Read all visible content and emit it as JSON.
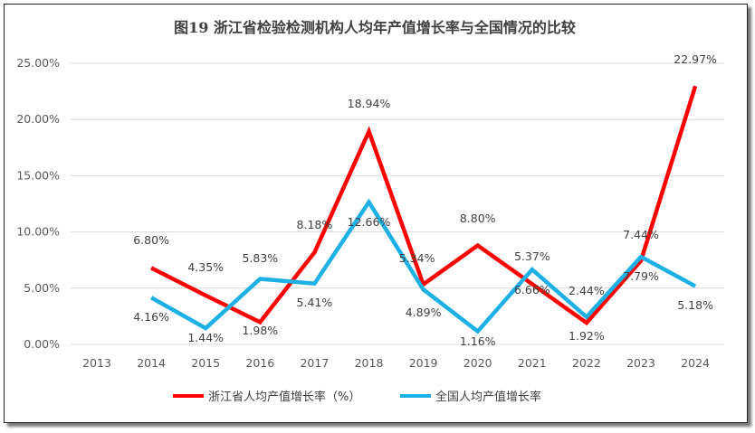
{
  "chart_data": {
    "type": "line",
    "title": "图19  浙江省检验检测机构人均年产值增长率与全国情况的比较",
    "categories": [
      "2013",
      "2014",
      "2015",
      "2016",
      "2017",
      "2018",
      "2019",
      "2020",
      "2021",
      "2022",
      "2023",
      "2024"
    ],
    "ylim": [
      0,
      25
    ],
    "yticks": [
      "0.00%",
      "5.00%",
      "10.00%",
      "15.00%",
      "20.00%",
      "25.00%"
    ],
    "grid": true,
    "legend_position": "bottom",
    "series": [
      {
        "name": "浙江省人均产值增长率（%）",
        "color": "#ff0000",
        "values": [
          null,
          6.8,
          4.35,
          1.98,
          8.18,
          18.94,
          5.34,
          8.8,
          5.37,
          1.92,
          7.44,
          22.97
        ],
        "labels": [
          null,
          "6.80%",
          "4.35%",
          "1.98%",
          "8.18%",
          "18.94%",
          "5.34%",
          "8.80%",
          "5.37%",
          "1.92%",
          "7.44%",
          "22.97%"
        ]
      },
      {
        "name": "全国人均产值增长率",
        "color": "#1cb0e4",
        "values": [
          null,
          4.16,
          1.44,
          5.83,
          5.41,
          12.66,
          4.89,
          1.16,
          6.66,
          2.44,
          7.79,
          5.18
        ],
        "labels": [
          null,
          "4.16%",
          "1.44%",
          "5.83%",
          "5.41%",
          "12.66%",
          "4.89%",
          "1.16%",
          "6.66%",
          "2.44%",
          "7.79%",
          "5.18%"
        ]
      }
    ]
  }
}
